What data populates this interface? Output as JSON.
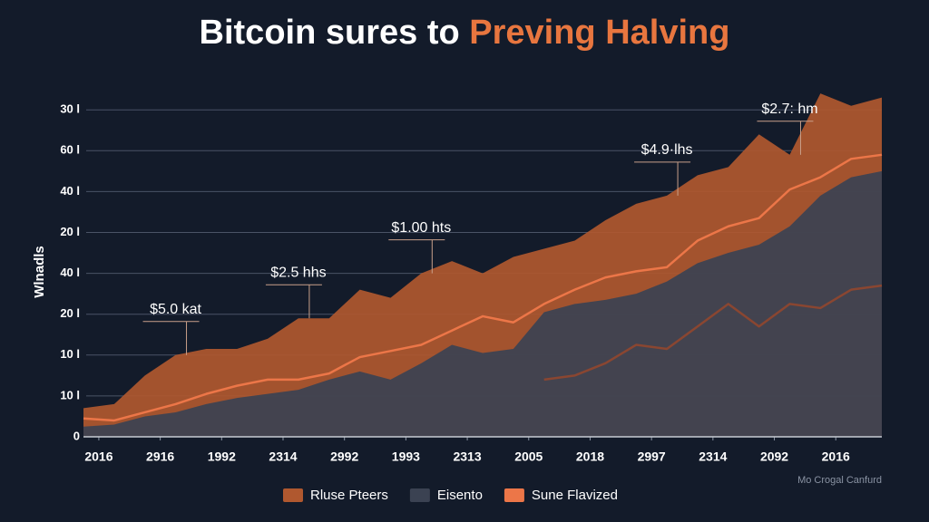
{
  "chart_data": {
    "type": "area",
    "title": "Bitcoin sures to ",
    "title_highlight": "Preving Halving",
    "ylabel": "Wlnadls",
    "footnote": "Mo Crogal Canfurd",
    "grid": true,
    "xlim": [
      0,
      13
    ],
    "ylim": [
      0,
      8.6
    ],
    "xticks": [
      {
        "value": 0.25,
        "label": "2016"
      },
      {
        "value": 1.25,
        "label": "2916"
      },
      {
        "value": 2.25,
        "label": "1992"
      },
      {
        "value": 3.25,
        "label": "2314"
      },
      {
        "value": 4.25,
        "label": "2992"
      },
      {
        "value": 5.25,
        "label": "1993"
      },
      {
        "value": 6.25,
        "label": "2313"
      },
      {
        "value": 7.25,
        "label": "2005"
      },
      {
        "value": 8.25,
        "label": "2018"
      },
      {
        "value": 9.25,
        "label": "2997"
      },
      {
        "value": 10.25,
        "label": "2314"
      },
      {
        "value": 11.25,
        "label": "2092"
      },
      {
        "value": 12.25,
        "label": "2016"
      }
    ],
    "yticks": [
      {
        "value": 0,
        "label": "0"
      },
      {
        "value": 1,
        "label": "10 l"
      },
      {
        "value": 2,
        "label": "10 l"
      },
      {
        "value": 3,
        "label": "20 l"
      },
      {
        "value": 4,
        "label": "40 l"
      },
      {
        "value": 5,
        "label": "20 l"
      },
      {
        "value": 6,
        "label": "40 l"
      },
      {
        "value": 7,
        "label": "60 l"
      },
      {
        "value": 8,
        "label": "30 l"
      }
    ],
    "x": [
      0,
      0.5,
      1,
      1.5,
      2,
      2.5,
      3,
      3.5,
      4,
      4.5,
      5,
      5.5,
      6,
      6.5,
      7,
      7.5,
      8,
      8.5,
      9,
      9.5,
      10,
      10.5,
      11,
      11.5,
      12,
      12.5,
      13
    ],
    "series": [
      {
        "name": "Rluse Pteers",
        "style": "area",
        "color": "#b0582f",
        "values": [
          0.7,
          0.8,
          1.5,
          2.0,
          2.15,
          2.15,
          2.4,
          2.9,
          2.9,
          3.6,
          3.4,
          4.0,
          4.3,
          4.0,
          4.4,
          4.6,
          4.8,
          5.3,
          5.7,
          5.9,
          6.4,
          6.6,
          7.4,
          6.9,
          8.4,
          8.1,
          8.3
        ]
      },
      {
        "name": "Eisento",
        "style": "area",
        "color": "#3b4252",
        "values": [
          0.25,
          0.3,
          0.5,
          0.6,
          0.8,
          0.95,
          1.05,
          1.15,
          1.4,
          1.6,
          1.4,
          1.8,
          2.25,
          2.05,
          2.15,
          3.05,
          3.25,
          3.35,
          3.5,
          3.8,
          4.25,
          4.5,
          4.7,
          5.15,
          5.9,
          6.35,
          6.5
        ]
      },
      {
        "name": "Sune Flavized",
        "style": "line",
        "color": "#ec7648",
        "values": [
          0.45,
          0.4,
          0.6,
          0.8,
          1.05,
          1.25,
          1.4,
          1.4,
          1.55,
          1.95,
          2.1,
          2.25,
          2.6,
          2.95,
          2.8,
          3.25,
          3.6,
          3.9,
          4.05,
          4.15,
          4.8,
          5.15,
          5.35,
          6.05,
          6.35,
          6.8,
          6.9
        ]
      },
      {
        "style": "line",
        "color": "#8a4631",
        "values": [
          null,
          null,
          null,
          null,
          null,
          null,
          null,
          null,
          null,
          null,
          null,
          null,
          null,
          null,
          null,
          1.4,
          1.5,
          1.8,
          2.25,
          2.15,
          2.7,
          3.25,
          2.7,
          3.25,
          3.15,
          3.6,
          3.7
        ]
      }
    ],
    "annotations": [
      {
        "text": "$5.0 kat",
        "index": 3
      },
      {
        "text": "$2.5 hhs",
        "index": 7
      },
      {
        "text": "$1.00 hts",
        "index": 11
      },
      {
        "text": "$4.9·lhs",
        "index": 19
      },
      {
        "text": "$2.7: hm",
        "index": 23
      }
    ]
  }
}
